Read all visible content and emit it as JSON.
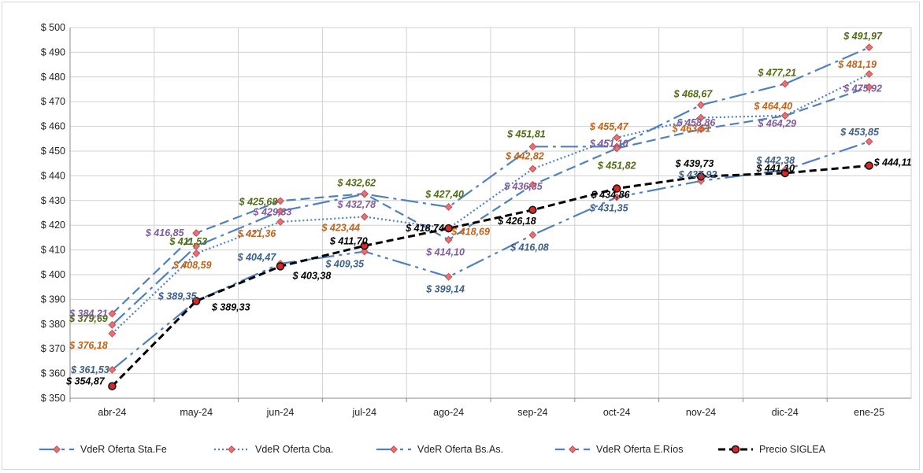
{
  "chart_data": {
    "type": "line",
    "categories": [
      "abr-24",
      "may-24",
      "jun-24",
      "jul-24",
      "ago-24",
      "sep-24",
      "oct-24",
      "nov-24",
      "dic-24",
      "ene-25"
    ],
    "ylim": [
      350,
      500
    ],
    "ytick_step": 10,
    "ytick_prefix": "$ ",
    "grid": true,
    "legend_position": "bottom",
    "series": [
      {
        "name": "VdeR Oferta Sta.Fe",
        "values": [
          379.69,
          411.53,
          425.68,
          432.62,
          427.4,
          451.81,
          451.82,
          468.67,
          477.21,
          491.97
        ],
        "labels": [
          "$ 379,69",
          "$ 411,53",
          "$ 425,68",
          "$ 432,62",
          "$ 427,40",
          "$ 451,81",
          "$ 451,82",
          "$ 468,67",
          "$ 477,21",
          "$ 491,97"
        ],
        "color": "#4f81bd",
        "label_color": "#4e6b12",
        "dash": "22,6,4,6"
      },
      {
        "name": "VdeR Oferta Cba.",
        "values": [
          376.18,
          408.59,
          421.36,
          423.44,
          418.69,
          442.82,
          455.47,
          463.51,
          464.4,
          481.19
        ],
        "labels": [
          "$ 376,18",
          "$ 408,59",
          "$ 421,36",
          "$ 423,44",
          "$ 418,69",
          "$ 442,82",
          "$ 455,47",
          "$ 463,51",
          "$ 464,40",
          "$ 481,19"
        ],
        "color": "#4f81bd",
        "label_color": "#c0631a",
        "dash": "2,3"
      },
      {
        "name": "VdeR Oferta Bs.As.",
        "values": [
          361.53,
          389.35,
          404.47,
          409.35,
          399.14,
          416.08,
          431.35,
          437.92,
          442.38,
          453.85
        ],
        "labels": [
          "$ 361,53",
          "$ 389,35",
          "$ 404,47",
          "$ 409,35",
          "$ 399,14",
          "$ 416,08",
          "$ 431,35",
          "$ 437,92",
          "$ 442,38",
          "$ 453,85"
        ],
        "color": "#4f81bd",
        "label_color": "#3a5f8a",
        "dash": "24,6,4,6,4,6"
      },
      {
        "name": "VdeR Oferta E.Ríos",
        "values": [
          384.21,
          416.85,
          429.83,
          432.78,
          414.1,
          436.35,
          451.1,
          458.86,
          464.29,
          475.92
        ],
        "labels": [
          "$ 384,21",
          "$ 416,85",
          "$ 429,83",
          "$ 432,78",
          "$ 414,10",
          "$ 436,35",
          "$ 451,10",
          "$ 458,86",
          "$ 464,29",
          "$ 475,92"
        ],
        "color": "#4f81bd",
        "label_color": "#7f5c9d",
        "dash": "12,6"
      },
      {
        "name": "Precio SIGLEA",
        "values": [
          354.87,
          389.33,
          403.38,
          411.7,
          418.74,
          426.18,
          434.86,
          439.73,
          441.1,
          444.11
        ],
        "labels": [
          "$ 354,87",
          "$ 389,33",
          "$ 403,38",
          "$ 411,70",
          "$ 418,74",
          "$ 426,18",
          "$ 434,86",
          "$ 439,73",
          "$ 441,10",
          "$ 444,11"
        ],
        "color": "#000000",
        "label_color": "#000000",
        "dash": "9,5"
      }
    ]
  }
}
